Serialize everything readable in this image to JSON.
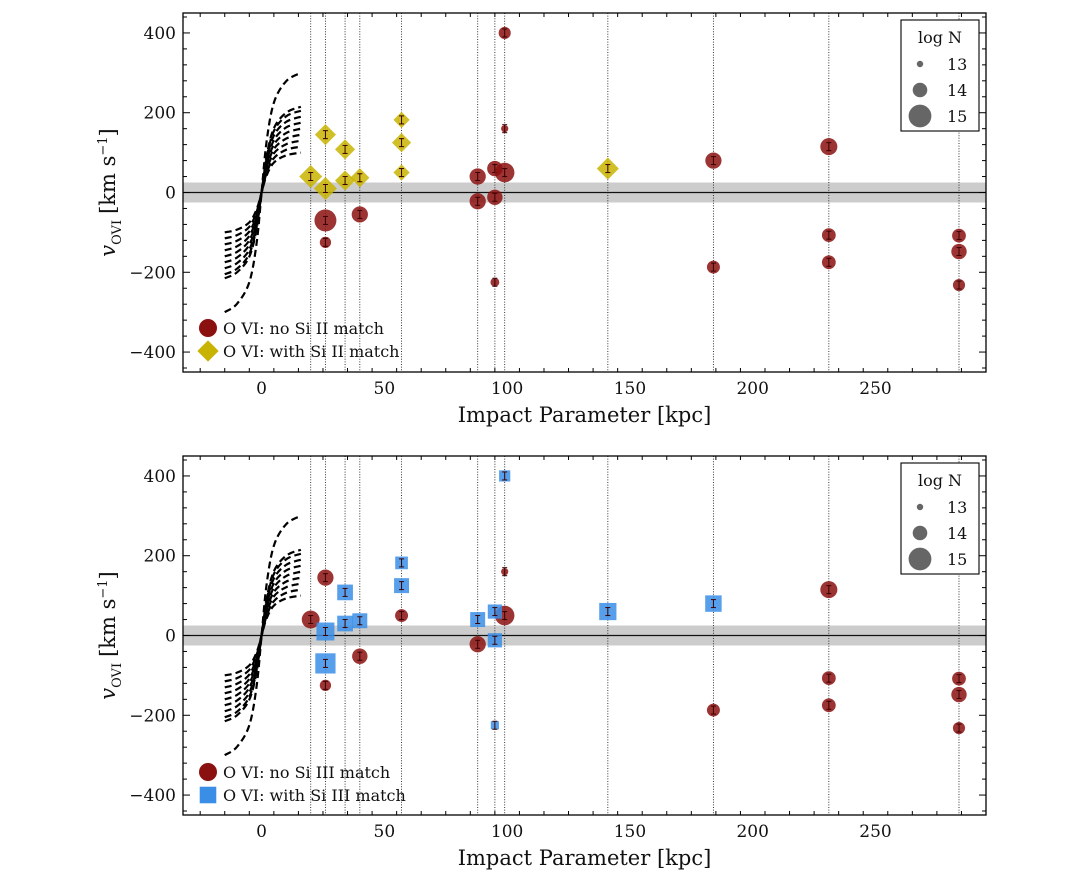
{
  "chart_data": [
    {
      "type": "scatter",
      "panel": "top",
      "xlabel": "Impact Parameter [kpc]",
      "ylabel_main": "v",
      "ylabel_sub": "OVI",
      "ylabel_units_pre": "[km s",
      "ylabel_units_exp": "−1",
      "ylabel_units_post": "]",
      "xlim": [
        -32,
        295
      ],
      "ylim": [
        -450,
        450
      ],
      "xticks": [
        0,
        50,
        100,
        150,
        200,
        250
      ],
      "yticks": [
        -400,
        -200,
        0,
        200,
        400
      ],
      "band": [
        -25,
        25
      ],
      "vlines": [
        20,
        26,
        34,
        40,
        57,
        88,
        95,
        99,
        141,
        184,
        231,
        284
      ],
      "series": [
        {
          "name": "O VI: no Si II match",
          "marker": "circle",
          "color": "#8b1010",
          "points": [
            {
              "x": 26,
              "y": -70,
              "logN": 14.9
            },
            {
              "x": 26,
              "y": -125,
              "logN": 13.6
            },
            {
              "x": 40,
              "y": -55,
              "logN": 14.2
            },
            {
              "x": 88,
              "y": 40,
              "logN": 14.2
            },
            {
              "x": 88,
              "y": -22,
              "logN": 14.2
            },
            {
              "x": 95,
              "y": 60,
              "logN": 14.1
            },
            {
              "x": 95,
              "y": -12,
              "logN": 14.1
            },
            {
              "x": 95,
              "y": -225,
              "logN": 13.3
            },
            {
              "x": 99,
              "y": 50,
              "logN": 14.6
            },
            {
              "x": 99,
              "y": 400,
              "logN": 13.7
            },
            {
              "x": 99,
              "y": 160,
              "logN": 13.1
            },
            {
              "x": 184,
              "y": 80,
              "logN": 14.2
            },
            {
              "x": 184,
              "y": -187,
              "logN": 13.8
            },
            {
              "x": 231,
              "y": 115,
              "logN": 14.3
            },
            {
              "x": 231,
              "y": -107,
              "logN": 13.9
            },
            {
              "x": 231,
              "y": -175,
              "logN": 13.9
            },
            {
              "x": 284,
              "y": -108,
              "logN": 13.9
            },
            {
              "x": 284,
              "y": -148,
              "logN": 14.1
            },
            {
              "x": 284,
              "y": -232,
              "logN": 13.7
            }
          ]
        },
        {
          "name": "O VI: with Si II match",
          "marker": "diamond",
          "color": "#c8b400",
          "points": [
            {
              "x": 20,
              "y": 40,
              "logN": 14.6
            },
            {
              "x": 26,
              "y": 145,
              "logN": 14.4
            },
            {
              "x": 26,
              "y": 10,
              "logN": 14.6
            },
            {
              "x": 34,
              "y": 108,
              "logN": 14.3
            },
            {
              "x": 34,
              "y": 30,
              "logN": 14.3
            },
            {
              "x": 40,
              "y": 37,
              "logN": 14.2
            },
            {
              "x": 57,
              "y": 182,
              "logN": 13.9
            },
            {
              "x": 57,
              "y": 125,
              "logN": 14.2
            },
            {
              "x": 57,
              "y": 50,
              "logN": 13.9
            },
            {
              "x": 141,
              "y": 60,
              "logN": 14.5
            }
          ]
        }
      ],
      "legend_labels": [
        "O VI: no Si II match",
        "O VI: with Si II match"
      ],
      "size_legend_title": "log N",
      "size_legend": [
        "13",
        "14",
        "15"
      ],
      "rotation_curves": [
        {
          "x": [
            -15,
            -10,
            -5,
            -2,
            0,
            2,
            5,
            10,
            16
          ],
          "y": [
            -100,
            -93,
            -75,
            -42,
            0,
            42,
            75,
            93,
            100
          ]
        },
        {
          "x": [
            -15,
            -10,
            -5,
            -2,
            0,
            2,
            5,
            10,
            16
          ],
          "y": [
            -115,
            -107,
            -86,
            -48,
            0,
            48,
            86,
            107,
            115
          ]
        },
        {
          "x": [
            -15,
            -10,
            -5,
            -2,
            0,
            2,
            5,
            10,
            16
          ],
          "y": [
            -130,
            -121,
            -98,
            -55,
            0,
            55,
            98,
            121,
            130
          ]
        },
        {
          "x": [
            -15,
            -10,
            -5,
            -2,
            0,
            2,
            5,
            10,
            16
          ],
          "y": [
            -145,
            -135,
            -109,
            -61,
            0,
            61,
            109,
            135,
            145
          ]
        },
        {
          "x": [
            -15,
            -10,
            -5,
            -2,
            0,
            2,
            5,
            10,
            16
          ],
          "y": [
            -160,
            -149,
            -120,
            -67,
            0,
            67,
            120,
            149,
            160
          ]
        },
        {
          "x": [
            -15,
            -10,
            -5,
            -2,
            0,
            2,
            5,
            10,
            16
          ],
          "y": [
            -175,
            -163,
            -131,
            -74,
            0,
            74,
            131,
            163,
            175
          ]
        },
        {
          "x": [
            -15,
            -10,
            -5,
            -2,
            0,
            2,
            5,
            10,
            16
          ],
          "y": [
            -190,
            -177,
            -143,
            -80,
            0,
            80,
            143,
            177,
            190
          ]
        },
        {
          "x": [
            -15,
            -10,
            -5,
            -2,
            0,
            2,
            5,
            10,
            16
          ],
          "y": [
            -205,
            -191,
            -154,
            -86,
            0,
            86,
            154,
            191,
            205
          ]
        },
        {
          "x": [
            -15,
            -10,
            -5,
            -2,
            0,
            2,
            5,
            10,
            16
          ],
          "y": [
            -215,
            -200,
            -161,
            -90,
            0,
            90,
            161,
            200,
            215
          ]
        },
        {
          "x": [
            -15,
            -10,
            -5,
            -2,
            0,
            2,
            5,
            10,
            16
          ],
          "y": [
            -300,
            -279,
            -225,
            -126,
            0,
            126,
            225,
            279,
            300
          ]
        }
      ]
    },
    {
      "type": "scatter",
      "panel": "bottom",
      "xlabel": "Impact Parameter [kpc]",
      "ylabel_main": "v",
      "ylabel_sub": "OVI",
      "ylabel_units_pre": "[km s",
      "ylabel_units_exp": "−1",
      "ylabel_units_post": "]",
      "xlim": [
        -32,
        295
      ],
      "ylim": [
        -450,
        450
      ],
      "xticks": [
        0,
        50,
        100,
        150,
        200,
        250
      ],
      "yticks": [
        -400,
        -200,
        0,
        200,
        400
      ],
      "band": [
        -25,
        25
      ],
      "vlines": [
        20,
        26,
        34,
        40,
        57,
        88,
        95,
        99,
        141,
        184,
        231,
        284
      ],
      "series": [
        {
          "name": "O VI: no Si III match",
          "marker": "circle",
          "color": "#8b1010",
          "points": [
            {
              "x": 20,
              "y": 40,
              "logN": 14.4
            },
            {
              "x": 26,
              "y": 145,
              "logN": 14.2
            },
            {
              "x": 26,
              "y": -125,
              "logN": 13.6
            },
            {
              "x": 40,
              "y": -52,
              "logN": 14.1
            },
            {
              "x": 57,
              "y": 50,
              "logN": 13.8
            },
            {
              "x": 88,
              "y": -22,
              "logN": 14.2
            },
            {
              "x": 99,
              "y": 50,
              "logN": 14.6
            },
            {
              "x": 99,
              "y": 160,
              "logN": 13.1
            },
            {
              "x": 184,
              "y": -187,
              "logN": 13.8
            },
            {
              "x": 231,
              "y": 115,
              "logN": 14.3
            },
            {
              "x": 231,
              "y": -107,
              "logN": 13.9
            },
            {
              "x": 231,
              "y": -175,
              "logN": 13.9
            },
            {
              "x": 284,
              "y": -108,
              "logN": 13.9
            },
            {
              "x": 284,
              "y": -148,
              "logN": 14.1
            },
            {
              "x": 284,
              "y": -232,
              "logN": 13.7
            }
          ]
        },
        {
          "name": "O VI: with Si III match",
          "marker": "square",
          "color": "#3a8ee6",
          "points": [
            {
              "x": 26,
              "y": 10,
              "logN": 14.6
            },
            {
              "x": 26,
              "y": -70,
              "logN": 14.9
            },
            {
              "x": 34,
              "y": 108,
              "logN": 14.3
            },
            {
              "x": 34,
              "y": 30,
              "logN": 14.3
            },
            {
              "x": 40,
              "y": 37,
              "logN": 14.2
            },
            {
              "x": 57,
              "y": 182,
              "logN": 13.9
            },
            {
              "x": 57,
              "y": 125,
              "logN": 14.2
            },
            {
              "x": 88,
              "y": 40,
              "logN": 14.2
            },
            {
              "x": 95,
              "y": 60,
              "logN": 14.1
            },
            {
              "x": 95,
              "y": -12,
              "logN": 14.1
            },
            {
              "x": 95,
              "y": -225,
              "logN": 13.3
            },
            {
              "x": 99,
              "y": 400,
              "logN": 13.7
            },
            {
              "x": 141,
              "y": 60,
              "logN": 14.5
            },
            {
              "x": 184,
              "y": 80,
              "logN": 14.4
            }
          ]
        }
      ],
      "legend_labels": [
        "O VI: no Si III match",
        "O VI: with Si III match"
      ],
      "size_legend_title": "log N",
      "size_legend": [
        "13",
        "14",
        "15"
      ],
      "rotation_curves": [
        {
          "x": [
            -15,
            -10,
            -5,
            -2,
            0,
            2,
            5,
            10,
            16
          ],
          "y": [
            -100,
            -93,
            -75,
            -42,
            0,
            42,
            75,
            93,
            100
          ]
        },
        {
          "x": [
            -15,
            -10,
            -5,
            -2,
            0,
            2,
            5,
            10,
            16
          ],
          "y": [
            -115,
            -107,
            -86,
            -48,
            0,
            48,
            86,
            107,
            115
          ]
        },
        {
          "x": [
            -15,
            -10,
            -5,
            -2,
            0,
            2,
            5,
            10,
            16
          ],
          "y": [
            -130,
            -121,
            -98,
            -55,
            0,
            55,
            98,
            121,
            130
          ]
        },
        {
          "x": [
            -15,
            -10,
            -5,
            -2,
            0,
            2,
            5,
            10,
            16
          ],
          "y": [
            -145,
            -135,
            -109,
            -61,
            0,
            61,
            109,
            135,
            145
          ]
        },
        {
          "x": [
            -15,
            -10,
            -5,
            -2,
            0,
            2,
            5,
            10,
            16
          ],
          "y": [
            -160,
            -149,
            -120,
            -67,
            0,
            67,
            120,
            149,
            160
          ]
        },
        {
          "x": [
            -15,
            -10,
            -5,
            -2,
            0,
            2,
            5,
            10,
            16
          ],
          "y": [
            -175,
            -163,
            -131,
            -74,
            0,
            74,
            131,
            163,
            175
          ]
        },
        {
          "x": [
            -15,
            -10,
            -5,
            -2,
            0,
            2,
            5,
            10,
            16
          ],
          "y": [
            -190,
            -177,
            -143,
            -80,
            0,
            80,
            143,
            177,
            190
          ]
        },
        {
          "x": [
            -15,
            -10,
            -5,
            -2,
            0,
            2,
            5,
            10,
            16
          ],
          "y": [
            -205,
            -191,
            -154,
            -86,
            0,
            86,
            154,
            191,
            205
          ]
        },
        {
          "x": [
            -15,
            -10,
            -5,
            -2,
            0,
            2,
            5,
            10,
            16
          ],
          "y": [
            -215,
            -200,
            -161,
            -90,
            0,
            90,
            161,
            200,
            215
          ]
        },
        {
          "x": [
            -15,
            -10,
            -5,
            -2,
            0,
            2,
            5,
            10,
            16
          ],
          "y": [
            -300,
            -279,
            -225,
            -126,
            0,
            126,
            225,
            279,
            300
          ]
        }
      ]
    }
  ]
}
